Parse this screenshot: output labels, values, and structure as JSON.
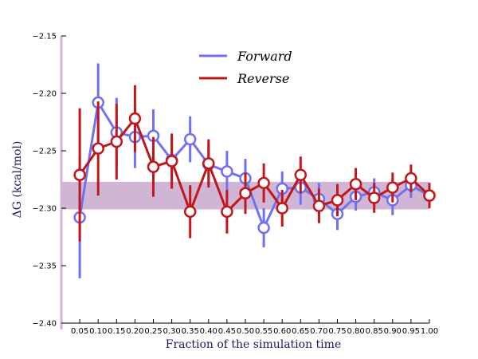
{
  "chart_data": {
    "type": "line",
    "title": "",
    "xlabel": "Fraction of the simulation time",
    "ylabel": "ΔG (kcal/mol)",
    "ylim": [
      -2.4,
      -2.15
    ],
    "xlim": [
      0.0,
      1.0
    ],
    "x": [
      0.05,
      0.1,
      0.15,
      0.2,
      0.25,
      0.3,
      0.35,
      0.4,
      0.45,
      0.5,
      0.55,
      0.6,
      0.65,
      0.7,
      0.75,
      0.8,
      0.85,
      0.9,
      0.95,
      1.0
    ],
    "x_tick_labels": [
      "0.05",
      "0.10",
      "0.15",
      "0.20",
      "0.25",
      "0.30",
      "0.35",
      "0.40",
      "0.45",
      "0.50",
      "0.55",
      "0.60",
      "0.65",
      "0.70",
      "0.75",
      "0.80",
      "0.85",
      "0.90",
      "0.95",
      "1.00"
    ],
    "y_ticks": [
      -2.4,
      -2.35,
      -2.3,
      -2.25,
      -2.2,
      -2.15
    ],
    "y_tick_labels": [
      "−2.40",
      "−2.35",
      "−2.30",
      "−2.25",
      "−2.20",
      "−2.15"
    ],
    "band": {
      "y_min": -2.301,
      "y_max": -2.277,
      "color": "#c9a8cc"
    },
    "legend_position": "top-center",
    "grid": false,
    "series": [
      {
        "name": "Forward",
        "color": "#7070f0",
        "values": [
          -2.308,
          -2.208,
          -2.234,
          -2.238,
          -2.237,
          -2.258,
          -2.24,
          -2.262,
          -2.268,
          -2.274,
          -2.317,
          -2.283,
          -2.282,
          -2.292,
          -2.305,
          -2.29,
          -2.286,
          -2.293,
          -2.28,
          -2.289
        ],
        "errors": [
          0.053,
          0.034,
          0.03,
          0.027,
          0.023,
          0.018,
          0.02,
          0.018,
          0.018,
          0.017,
          0.017,
          0.015,
          0.015,
          0.014,
          0.014,
          0.012,
          0.012,
          0.013,
          0.011,
          0.011
        ]
      },
      {
        "name": "Reverse",
        "color": "#c0171a",
        "values": [
          -2.271,
          -2.248,
          -2.242,
          -2.222,
          -2.264,
          -2.259,
          -2.303,
          -2.261,
          -2.303,
          -2.287,
          -2.278,
          -2.3,
          -2.271,
          -2.298,
          -2.293,
          -2.279,
          -2.291,
          -2.282,
          -2.274,
          -2.289
        ],
        "errors": [
          0.058,
          0.041,
          0.033,
          0.029,
          0.026,
          0.024,
          0.023,
          0.021,
          0.019,
          0.018,
          0.017,
          0.016,
          0.016,
          0.015,
          0.014,
          0.014,
          0.013,
          0.013,
          0.012,
          0.011
        ]
      }
    ]
  }
}
